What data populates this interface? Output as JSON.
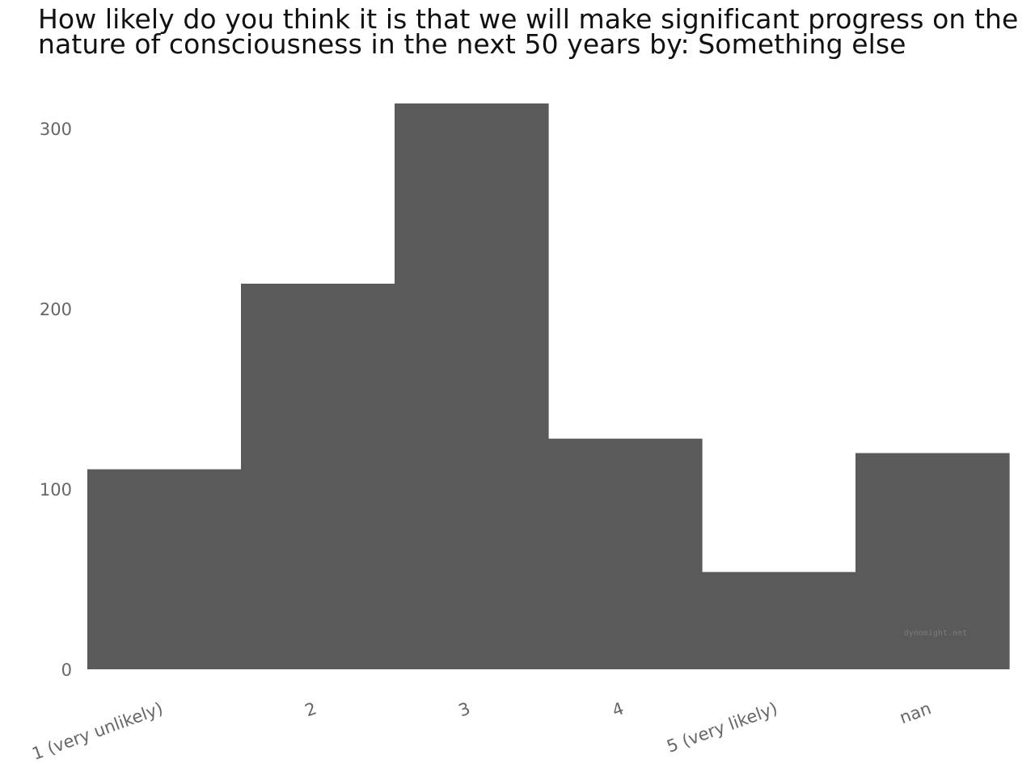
{
  "chart_data": {
    "type": "bar",
    "title": "How likely do you think it is that we will make significant progress on the nature of consciousness in the next 50 years by: Something else",
    "xlabel": "",
    "ylabel": "",
    "categories": [
      "1 (very unlikely)",
      "2",
      "3",
      "4",
      "5 (very likely)",
      "nan"
    ],
    "values": [
      111,
      214,
      314,
      128,
      54,
      120
    ],
    "ylim": [
      0,
      314
    ],
    "yticks": [
      0,
      100,
      200,
      300
    ],
    "grid": false,
    "legend": "none",
    "bar_color": "#5a5a5a",
    "watermark": "dynomight.net"
  }
}
